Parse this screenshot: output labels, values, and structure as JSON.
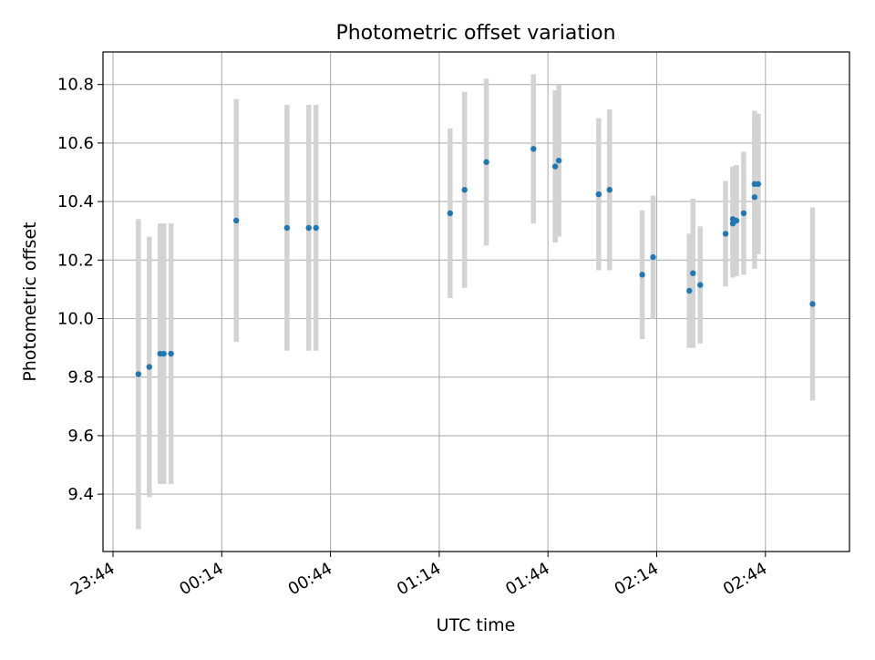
{
  "chart_data": {
    "type": "scatter",
    "title": "Photometric offset variation",
    "xlabel": "UTC time",
    "ylabel": "Photometric offset",
    "x_ticks": [
      "23:44",
      "00:14",
      "00:44",
      "01:14",
      "01:44",
      "02:14",
      "02:44"
    ],
    "y_ticks": [
      "9.4",
      "9.6",
      "9.8",
      "10.0",
      "10.2",
      "10.4",
      "10.6",
      "10.8"
    ],
    "grid": true,
    "series": [
      {
        "values_with_errorbars": true,
        "marker_color": "#1f77b4",
        "errorbar_color": "#d3d3d3",
        "points": [
          {
            "t": "23:51",
            "y": 9.81,
            "err": 0.53
          },
          {
            "t": "23:54",
            "y": 9.835,
            "err": 0.445
          },
          {
            "t": "23:57",
            "y": 9.88,
            "err": 0.445
          },
          {
            "t": "23:58",
            "y": 9.88,
            "err": 0.445
          },
          {
            "t": "00:00",
            "y": 9.88,
            "err": 0.445
          },
          {
            "t": "00:18",
            "y": 10.335,
            "err": 0.415
          },
          {
            "t": "00:32",
            "y": 10.31,
            "err": 0.42
          },
          {
            "t": "00:38",
            "y": 10.31,
            "err": 0.42
          },
          {
            "t": "00:40",
            "y": 10.31,
            "err": 0.42
          },
          {
            "t": "01:17",
            "y": 10.36,
            "err": 0.29
          },
          {
            "t": "01:21",
            "y": 10.44,
            "err": 0.335
          },
          {
            "t": "01:27",
            "y": 10.535,
            "err": 0.285
          },
          {
            "t": "01:40",
            "y": 10.58,
            "err": 0.255
          },
          {
            "t": "01:46",
            "y": 10.52,
            "err": 0.26
          },
          {
            "t": "01:47",
            "y": 10.54,
            "err": 0.26
          },
          {
            "t": "01:58",
            "y": 10.425,
            "err": 0.26
          },
          {
            "t": "02:01",
            "y": 10.44,
            "err": 0.275
          },
          {
            "t": "02:10",
            "y": 10.15,
            "err": 0.22
          },
          {
            "t": "02:13",
            "y": 10.21,
            "err": 0.21
          },
          {
            "t": "02:23",
            "y": 10.095,
            "err": 0.195
          },
          {
            "t": "02:24",
            "y": 10.155,
            "err": 0.255
          },
          {
            "t": "02:26",
            "y": 10.115,
            "err": 0.2
          },
          {
            "t": "02:33",
            "y": 10.29,
            "err": 0.18
          },
          {
            "t": "02:35",
            "y": 10.325,
            "err": 0.185
          },
          {
            "t": "02:35",
            "y": 10.34,
            "err": 0.18
          },
          {
            "t": "02:36",
            "y": 10.335,
            "err": 0.19
          },
          {
            "t": "02:38",
            "y": 10.36,
            "err": 0.21
          },
          {
            "t": "02:41",
            "y": 10.415,
            "err": 0.245
          },
          {
            "t": "02:41",
            "y": 10.46,
            "err": 0.25
          },
          {
            "t": "02:42",
            "y": 10.46,
            "err": 0.24
          },
          {
            "t": "02:57",
            "y": 10.05,
            "err": 0.33
          }
        ]
      }
    ]
  }
}
